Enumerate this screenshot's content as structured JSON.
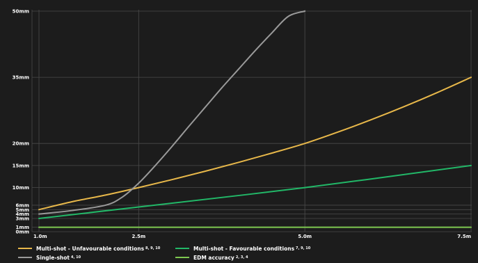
{
  "chart_data": {
    "type": "line",
    "title": "",
    "xlabel": "",
    "ylabel": "",
    "x_ticks": [
      {
        "value": 1.0,
        "label": "1.0m"
      },
      {
        "value": 2.5,
        "label": "2.5m"
      },
      {
        "value": 5.0,
        "label": "5.0m"
      },
      {
        "value": 7.5,
        "label": "7.5m"
      }
    ],
    "y_ticks": [
      {
        "value": 0,
        "label": "0mm"
      },
      {
        "value": 1,
        "label": "1mm"
      },
      {
        "value": 3,
        "label": "3mm"
      },
      {
        "value": 4,
        "label": "4mm"
      },
      {
        "value": 5,
        "label": "5mm"
      },
      {
        "value": 6,
        "label": "6mm"
      },
      {
        "value": 10,
        "label": "10mm"
      },
      {
        "value": 15,
        "label": "15mm"
      },
      {
        "value": 20,
        "label": "20mm"
      },
      {
        "value": 35,
        "label": "35mm"
      },
      {
        "value": 50,
        "label": "50mm"
      }
    ],
    "xlim": [
      1.0,
      7.5
    ],
    "ylim": [
      0,
      50
    ],
    "grid": true,
    "legend_position": "bottom",
    "series": [
      {
        "name": "Multi-shot - Unfavourable conditions",
        "refs": "8, 9, 10",
        "color": "#e8b84a",
        "x": [
          1.0,
          1.5,
          2.0,
          2.5,
          3.0,
          3.5,
          4.0,
          4.5,
          5.0,
          5.5,
          6.0,
          6.5,
          7.0,
          7.5
        ],
        "y": [
          5,
          6.8,
          8.3,
          10,
          11.8,
          13.7,
          15.7,
          17.8,
          20,
          22.6,
          25.4,
          28.4,
          31.6,
          35
        ]
      },
      {
        "name": "Multi-shot - Favourable conditions",
        "refs": "7, 9, 10",
        "color": "#22b868",
        "x": [
          1.0,
          2.5,
          5.0,
          7.5
        ],
        "y": [
          3,
          5.6,
          10,
          15
        ]
      },
      {
        "name": "Single-shot",
        "refs": "4, 10",
        "color": "#9a9a9a",
        "x": [
          1.0,
          1.5,
          2.0,
          2.25,
          2.5,
          2.75,
          3.0,
          3.25,
          3.5,
          3.75,
          4.0,
          4.25,
          4.5,
          4.75,
          5.0
        ],
        "y": [
          4,
          4.8,
          6,
          7.8,
          11,
          15,
          19.3,
          23.8,
          28.2,
          32.6,
          36.8,
          41,
          45,
          48.8,
          50
        ]
      },
      {
        "name": "EDM accuracy",
        "refs": "2, 3, 4",
        "color": "#7ec850",
        "x": [
          1.0,
          7.5
        ],
        "y": [
          1,
          1
        ]
      }
    ]
  },
  "legend": [
    {
      "label": "Multi-shot - Unfavourable conditions",
      "refs": "8, 9, 10",
      "color": "#e8b84a"
    },
    {
      "label": "Multi-shot - Favourable conditions",
      "refs": "7, 9, 10",
      "color": "#22b868"
    },
    {
      "label": "Single-shot",
      "refs": "4, 10",
      "color": "#9a9a9a"
    },
    {
      "label": "EDM accuracy",
      "refs": "2, 3, 4",
      "color": "#7ec850"
    }
  ]
}
